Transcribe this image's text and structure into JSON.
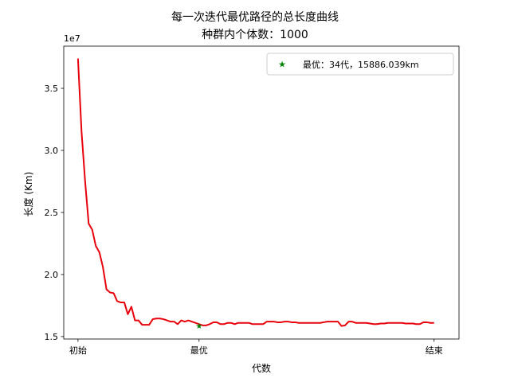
{
  "chart_data": {
    "type": "line",
    "title_line1": "每一次迭代最优路径的总长度曲线",
    "title_line2": "种群内个体数：1000",
    "xlabel": "代数",
    "ylabel": "长度 (Km)",
    "y_offset_label": "1e7",
    "xlim": [
      -4,
      107
    ],
    "ylim": [
      14.8,
      38.4
    ],
    "y_scale_note": "values in units of 1e6",
    "x_ticks": [
      {
        "value": 0,
        "label": "初始"
      },
      {
        "value": 34,
        "label": "最优"
      },
      {
        "value": 100,
        "label": "结束"
      }
    ],
    "y_ticks": [
      {
        "value": 15,
        "label": "1.5"
      },
      {
        "value": 20,
        "label": "2.0"
      },
      {
        "value": 25,
        "label": "2.5"
      },
      {
        "value": 30,
        "label": "3.0"
      },
      {
        "value": 35,
        "label": "3.5"
      }
    ],
    "series": [
      {
        "name": "",
        "color": "#e8000b",
        "x": [
          0,
          1,
          2,
          3,
          4,
          5,
          6,
          7,
          8,
          9,
          10,
          11,
          12,
          13,
          14,
          15,
          16,
          17,
          18,
          19,
          20,
          21,
          22,
          23,
          24,
          25,
          26,
          27,
          28,
          29,
          30,
          31,
          32,
          33,
          34,
          35,
          36,
          37,
          38,
          39,
          40,
          41,
          42,
          43,
          44,
          45,
          46,
          47,
          48,
          49,
          50,
          51,
          52,
          53,
          54,
          55,
          56,
          57,
          58,
          59,
          60,
          61,
          62,
          63,
          64,
          65,
          66,
          67,
          68,
          69,
          70,
          71,
          72,
          73,
          74,
          75,
          76,
          77,
          78,
          79,
          80,
          81,
          82,
          83,
          84,
          85,
          86,
          87,
          88,
          89,
          90,
          91,
          92,
          93,
          94,
          95,
          96,
          97,
          98,
          99,
          100
        ],
        "y": [
          37.4,
          31.5,
          27.5,
          24.1,
          23.6,
          22.3,
          21.8,
          20.6,
          18.8,
          18.55,
          18.5,
          17.85,
          17.75,
          17.75,
          16.8,
          17.4,
          16.3,
          16.3,
          15.95,
          15.95,
          15.95,
          16.4,
          16.45,
          16.45,
          16.4,
          16.3,
          16.2,
          16.2,
          16.0,
          16.3,
          16.2,
          16.3,
          16.2,
          16.1,
          16.0,
          15.9,
          15.9,
          16.0,
          16.15,
          16.15,
          16.0,
          16.0,
          16.1,
          16.1,
          16.0,
          16.1,
          16.1,
          16.1,
          16.1,
          16.0,
          16.0,
          16.0,
          16.0,
          16.2,
          16.2,
          16.2,
          16.15,
          16.15,
          16.2,
          16.2,
          16.15,
          16.15,
          16.1,
          16.1,
          16.1,
          16.1,
          16.1,
          16.1,
          16.1,
          16.15,
          16.2,
          16.2,
          16.2,
          16.2,
          15.85,
          15.9,
          16.2,
          16.2,
          16.1,
          16.1,
          16.1,
          16.1,
          16.05,
          16.0,
          16.0,
          16.05,
          16.05,
          16.1,
          16.1,
          16.1,
          16.1,
          16.1,
          16.05,
          16.05,
          16.05,
          16.0,
          16.0,
          16.15,
          16.15,
          16.1,
          16.1
        ]
      }
    ],
    "best_point": {
      "x": 34,
      "y": 15.886,
      "color": "#008000"
    },
    "legend": {
      "placement": "top-right",
      "text": "最优：34代，15886.039km"
    }
  }
}
